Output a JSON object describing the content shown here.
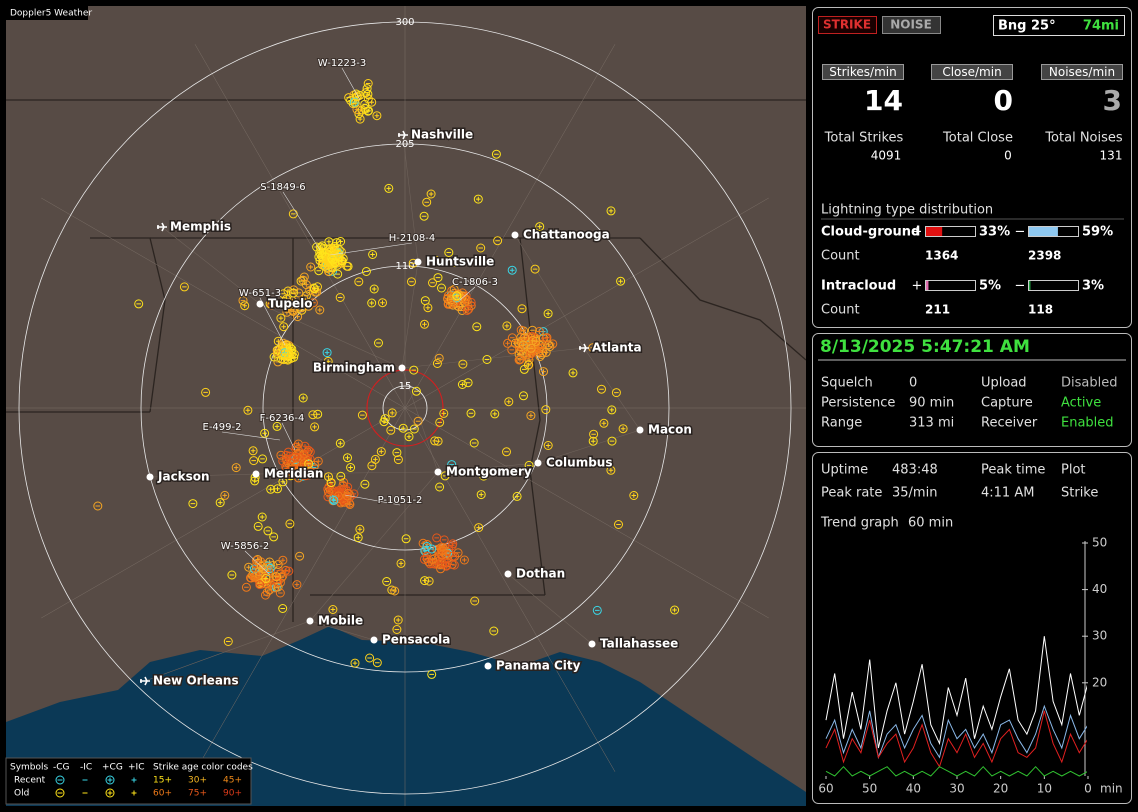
{
  "app_title": "Doppler5 Weather",
  "map": {
    "range_labels": [
      "300",
      "205",
      "110",
      "15"
    ],
    "cities": [
      "Nashville",
      "Memphis",
      "Chattanooga",
      "Huntsville",
      "Tupelo",
      "Atlanta",
      "Birmingham",
      "Macon",
      "Jackson",
      "Meridian",
      "Montgomery",
      "Columbus",
      "Dothan",
      "Mobile",
      "Pensacola",
      "Tallahassee",
      "Panama City",
      "New Orleans"
    ],
    "storms": [
      "W-1223-3",
      "S-1849-6",
      "H-2108-4",
      "W-651-3",
      "C-1806-3",
      "E-499-2",
      "F-6236-4",
      "P-1051-2",
      "W-5856-2"
    ],
    "legend": {
      "header": [
        "Symbols",
        "-CG",
        "-IC",
        "+CG",
        "+IC",
        "Strike age color codes"
      ],
      "rows": [
        {
          "label": "Recent",
          "ages": [
            "15+",
            "30+",
            "45+"
          ]
        },
        {
          "label": "Old",
          "ages": [
            "60+",
            "75+",
            "90+"
          ]
        }
      ]
    }
  },
  "controls": {
    "strike_button": "STRIKE",
    "noise_button": "NOISE",
    "bearing": "Bng 25°",
    "distance": "74mi"
  },
  "rates": {
    "headers": [
      "Strikes/min",
      "Close/min",
      "Noises/min"
    ],
    "values": [
      14,
      0,
      3
    ],
    "total_labels": [
      "Total Strikes",
      "Total Close",
      "Total Noises"
    ],
    "totals": [
      4091,
      0,
      131
    ]
  },
  "distribution": {
    "title": "Lightning type distribution",
    "count_label": "Count",
    "signs": [
      "+",
      "−"
    ],
    "types": [
      {
        "name": "Cloud-ground",
        "values": [
          33,
          59
        ],
        "value_labels": [
          "33%",
          "59%"
        ],
        "counts": [
          1364,
          2398
        ]
      },
      {
        "name": "Intracloud",
        "values": [
          5,
          3
        ],
        "value_labels": [
          "5%",
          "3%"
        ],
        "counts": [
          211,
          118
        ]
      }
    ]
  },
  "status": {
    "datetime": "8/13/2025 5:47:21 AM",
    "rows": [
      [
        "Squelch",
        "0",
        "Upload",
        "Disabled"
      ],
      [
        "Persistence",
        "90 min",
        "Capture",
        "Active"
      ],
      [
        "Range",
        "313 mi",
        "Receiver",
        "Enabled"
      ]
    ]
  },
  "info": [
    {
      "label": "Uptime",
      "value": "483:48"
    },
    {
      "label": "Peak time",
      "value": "4:11 AM"
    },
    {
      "label": "Plot",
      "value": "Strike"
    },
    {
      "label": "Peak rate",
      "value": "35/min"
    },
    {
      "label": "Trend graph",
      "value": "60 min"
    }
  ],
  "chart_data": {
    "type": "line",
    "x": [
      60,
      58,
      56,
      54,
      52,
      50,
      48,
      46,
      44,
      42,
      40,
      38,
      36,
      34,
      32,
      30,
      28,
      26,
      24,
      22,
      20,
      18,
      16,
      14,
      12,
      10,
      8,
      6,
      4,
      2,
      0
    ],
    "xlim": [
      60,
      0
    ],
    "xticks": [
      60,
      50,
      40,
      30,
      20,
      10,
      0
    ],
    "x_unit": "min",
    "ylim": [
      0,
      50
    ],
    "yticks": [
      20,
      30,
      40,
      50
    ],
    "series": [
      {
        "color": "#ffffff",
        "values": [
          12,
          22,
          8,
          18,
          10,
          25,
          6,
          14,
          20,
          9,
          16,
          24,
          11,
          7,
          19,
          13,
          21,
          8,
          15,
          10,
          17,
          23,
          12,
          9,
          14,
          30,
          16,
          11,
          22,
          13,
          20
        ]
      },
      {
        "color": "#8ab8e8",
        "values": [
          8,
          12,
          5,
          10,
          6,
          14,
          4,
          9,
          11,
          6,
          10,
          13,
          7,
          4,
          12,
          8,
          10,
          6,
          9,
          5,
          11,
          12,
          8,
          5,
          9,
          15,
          10,
          6,
          13,
          8,
          11
        ]
      },
      {
        "color": "#e02020",
        "values": [
          6,
          10,
          3,
          8,
          5,
          12,
          4,
          7,
          9,
          3,
          6,
          11,
          5,
          2,
          8,
          5,
          9,
          4,
          7,
          3,
          8,
          10,
          5,
          4,
          6,
          14,
          7,
          3,
          9,
          5,
          8
        ]
      },
      {
        "color": "#30c030",
        "values": [
          1,
          0,
          2,
          0,
          1,
          0,
          1,
          2,
          0,
          1,
          0,
          1,
          0,
          2,
          1,
          0,
          1,
          0,
          2,
          0,
          1,
          0,
          1,
          0,
          2,
          0,
          1,
          0,
          1,
          0,
          1
        ]
      }
    ]
  }
}
